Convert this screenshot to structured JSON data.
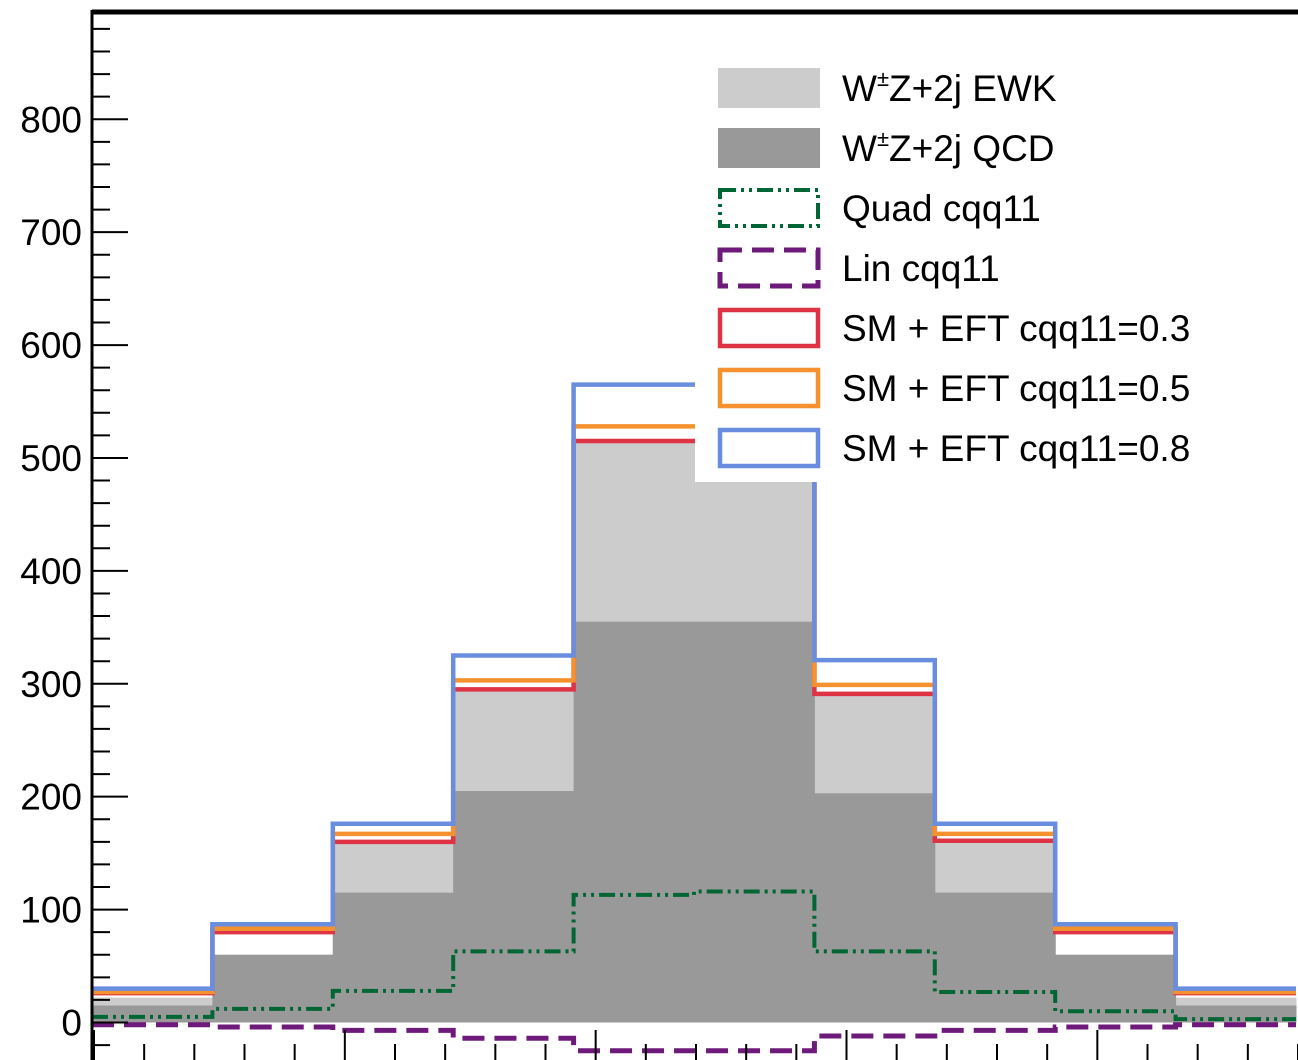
{
  "chart_data": {
    "type": "histogram",
    "bins": 10,
    "ylim": [
      -35,
      895
    ],
    "y_ticks": [
      0,
      100,
      200,
      300,
      400,
      500,
      600,
      700,
      800
    ],
    "legend_placement": "top-right",
    "series": [
      {
        "name_parts": [
          "W",
          "±",
          "Z+2j EWK"
        ],
        "style": "filled",
        "color": "#cccccc",
        "values": [
          22,
          60,
          160,
          295,
          515,
          515,
          293,
          160,
          60,
          22
        ]
      },
      {
        "name_parts": [
          "W",
          "±",
          "Z+2j QCD"
        ],
        "style": "filled",
        "color": "#999999",
        "values": [
          15,
          60,
          115,
          205,
          355,
          355,
          203,
          115,
          60,
          15
        ]
      },
      {
        "name": "Quad cqq11",
        "style": "dash-dot-dot",
        "color": "#006633",
        "values": [
          5,
          12,
          28,
          63,
          113,
          116,
          63,
          27,
          10,
          3
        ]
      },
      {
        "name": "Lin cqq11",
        "style": "dashed",
        "color": "#6e1a7a",
        "values": [
          -2,
          -4,
          -7,
          -14,
          -25,
          -25,
          -12,
          -7,
          -4,
          -2
        ]
      },
      {
        "name": "SM + EFT cqq11=0.3",
        "style": "line",
        "color": "#dd3344",
        "values": [
          26,
          80,
          160,
          295,
          515,
          515,
          291,
          161,
          80,
          26
        ]
      },
      {
        "name": "SM + EFT cqq11=0.5",
        "style": "line",
        "color": "#f5922f",
        "values": [
          27,
          83,
          167,
          303,
          528,
          528,
          299,
          167,
          83,
          27
        ]
      },
      {
        "name": "SM + EFT cqq11=0.8",
        "style": "line",
        "color": "#6a8edf",
        "values": [
          30,
          87,
          176,
          325,
          565,
          565,
          321,
          176,
          87,
          30
        ]
      }
    ]
  }
}
